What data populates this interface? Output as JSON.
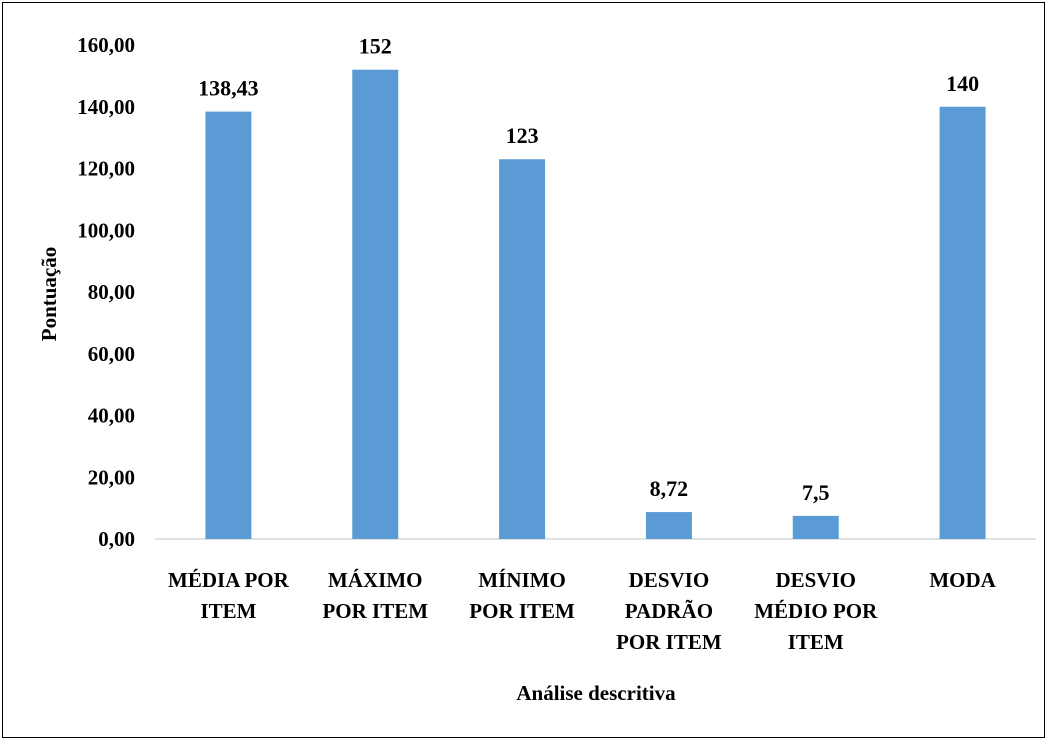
{
  "chart_data": {
    "type": "bar",
    "categories": [
      [
        "MÉDIA POR",
        "ITEM"
      ],
      [
        "MÁXIMO",
        "POR ITEM"
      ],
      [
        "MÍNIMO",
        "POR ITEM"
      ],
      [
        "DESVIO",
        "PADRÃO",
        "POR ITEM"
      ],
      [
        "DESVIO",
        "MÉDIO POR",
        "ITEM"
      ],
      [
        "MODA"
      ]
    ],
    "values": [
      138.43,
      152,
      123,
      8.72,
      7.5,
      140
    ],
    "data_labels": [
      "138,43",
      "152",
      "123",
      "8,72",
      "7,5",
      "140"
    ],
    "title": "",
    "xlabel": "Análise descritiva",
    "ylabel": "Pontuação",
    "ylim": [
      0,
      160
    ],
    "yticks": [
      0,
      20,
      40,
      60,
      80,
      100,
      120,
      140,
      160
    ],
    "ytick_labels": [
      "0,00",
      "20,00",
      "40,00",
      "60,00",
      "80,00",
      "100,00",
      "120,00",
      "140,00",
      "160,00"
    ],
    "grid": false,
    "legend": "none",
    "colors": {
      "bar": "#5B9BD5",
      "axis": "#D9D9D9",
      "text": "#000000"
    }
  }
}
